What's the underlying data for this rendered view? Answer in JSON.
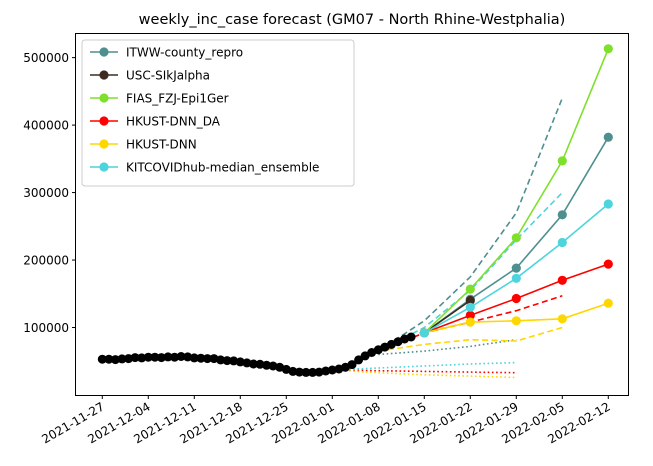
{
  "chart_data": {
    "type": "line",
    "title": "weekly_inc_case forecast (GM07 - North Rhine-Westphalia)",
    "xlabel": "",
    "ylabel": "",
    "xlim": [
      "2021-11-23",
      "2022-02-15"
    ],
    "ylim": [
      0,
      535000
    ],
    "x_ticks": [
      "2021-11-27",
      "2021-12-04",
      "2021-12-11",
      "2021-12-18",
      "2021-12-25",
      "2022-01-01",
      "2022-01-08",
      "2022-01-15",
      "2022-01-22",
      "2022-01-29",
      "2022-02-05",
      "2022-02-12"
    ],
    "y_ticks": [
      100000,
      200000,
      300000,
      400000,
      500000
    ],
    "y_tick_labels": [
      "100000",
      "200000",
      "300000",
      "400000",
      "500000"
    ],
    "grid": false,
    "legend_position": "upper-left",
    "observed": {
      "color": "#000000",
      "points": [
        [
          "2021-11-27",
          53000
        ],
        [
          "2021-11-28",
          53000
        ],
        [
          "2021-11-29",
          52500
        ],
        [
          "2021-11-30",
          53500
        ],
        [
          "2021-12-01",
          54000
        ],
        [
          "2021-12-02",
          55500
        ],
        [
          "2021-12-03",
          55000
        ],
        [
          "2021-12-04",
          56000
        ],
        [
          "2021-12-05",
          56000
        ],
        [
          "2021-12-06",
          55500
        ],
        [
          "2021-12-07",
          56500
        ],
        [
          "2021-12-08",
          56000
        ],
        [
          "2021-12-09",
          57000
        ],
        [
          "2021-12-10",
          56500
        ],
        [
          "2021-12-11",
          55000
        ],
        [
          "2021-12-12",
          54500
        ],
        [
          "2021-12-13",
          54000
        ],
        [
          "2021-12-14",
          54000
        ],
        [
          "2021-12-15",
          52000
        ],
        [
          "2021-12-16",
          51000
        ],
        [
          "2021-12-17",
          50500
        ],
        [
          "2021-12-18",
          49000
        ],
        [
          "2021-12-19",
          47500
        ],
        [
          "2021-12-20",
          46000
        ],
        [
          "2021-12-21",
          45500
        ],
        [
          "2021-12-22",
          44000
        ],
        [
          "2021-12-23",
          43000
        ],
        [
          "2021-12-24",
          41000
        ],
        [
          "2021-12-25",
          38000
        ],
        [
          "2021-12-26",
          35000
        ],
        [
          "2021-12-27",
          34000
        ],
        [
          "2021-12-28",
          33500
        ],
        [
          "2021-12-29",
          33500
        ],
        [
          "2021-12-30",
          34000
        ],
        [
          "2021-12-31",
          35500
        ],
        [
          "2022-01-01",
          37000
        ],
        [
          "2022-01-02",
          38500
        ],
        [
          "2022-01-03",
          41000
        ],
        [
          "2022-01-04",
          45000
        ],
        [
          "2022-01-05",
          52000
        ],
        [
          "2022-01-06",
          58000
        ],
        [
          "2022-01-07",
          63000
        ],
        [
          "2022-01-08",
          67000
        ],
        [
          "2022-01-09",
          71000
        ],
        [
          "2022-01-10",
          75000
        ],
        [
          "2022-01-11",
          79000
        ],
        [
          "2022-01-12",
          83000
        ],
        [
          "2022-01-13",
          86000
        ]
      ]
    },
    "series": [
      {
        "name": "ITWW-county_repro",
        "color": "#4f8f8f",
        "points": [
          [
            "2022-01-15",
            92000
          ],
          [
            "2022-01-22",
            142000
          ],
          [
            "2022-01-29",
            188000
          ],
          [
            "2022-02-05",
            267000
          ],
          [
            "2022-02-12",
            382000
          ]
        ],
        "upper": [
          [
            "2022-01-08",
            65000
          ],
          [
            "2022-01-15",
            110000
          ],
          [
            "2022-01-22",
            175000
          ],
          [
            "2022-01-29",
            270000
          ],
          [
            "2022-02-05",
            440000
          ]
        ],
        "lower": [
          [
            "2022-01-08",
            60000
          ],
          [
            "2022-01-15",
            65000
          ],
          [
            "2022-01-22",
            72000
          ],
          [
            "2022-01-29",
            82000
          ]
        ]
      },
      {
        "name": "USC-SIkJalpha",
        "color": "#3d2b1f",
        "points": [
          [
            "2022-01-15",
            92000
          ],
          [
            "2022-01-22",
            140000
          ]
        ],
        "upper": [],
        "lower": []
      },
      {
        "name": "FIAS_FZJ-Epi1Ger",
        "color": "#7fe02b",
        "points": [
          [
            "2022-01-15",
            92000
          ],
          [
            "2022-01-22",
            157000
          ],
          [
            "2022-01-29",
            233000
          ],
          [
            "2022-02-05",
            347000
          ],
          [
            "2022-02-12",
            513000
          ]
        ],
        "upper": [],
        "lower": []
      },
      {
        "name": "HKUST-DNN_DA",
        "color": "#ff0000",
        "points": [
          [
            "2022-01-15",
            92000
          ],
          [
            "2022-01-22",
            118000
          ],
          [
            "2022-01-29",
            143000
          ],
          [
            "2022-02-05",
            170000
          ],
          [
            "2022-02-12",
            194000
          ]
        ],
        "upper": [
          [
            "2022-01-08",
            65000
          ],
          [
            "2022-01-15",
            92000
          ],
          [
            "2022-01-22",
            108000
          ],
          [
            "2022-01-29",
            125000
          ],
          [
            "2022-02-05",
            147000
          ]
        ],
        "lower": [
          [
            "2022-01-01",
            37000
          ],
          [
            "2022-01-08",
            36000
          ],
          [
            "2022-01-15",
            35000
          ],
          [
            "2022-01-22",
            34000
          ],
          [
            "2022-01-29",
            33000
          ]
        ]
      },
      {
        "name": "HKUST-DNN",
        "color": "#ffd700",
        "points": [
          [
            "2022-01-15",
            92000
          ],
          [
            "2022-01-22",
            108000
          ],
          [
            "2022-01-29",
            110000
          ],
          [
            "2022-02-05",
            113000
          ],
          [
            "2022-02-12",
            136000
          ]
        ],
        "upper": [
          [
            "2022-01-08",
            65000
          ],
          [
            "2022-01-15",
            75000
          ],
          [
            "2022-01-22",
            82000
          ],
          [
            "2022-01-29",
            80000
          ],
          [
            "2022-02-05",
            100000
          ]
        ],
        "lower": [
          [
            "2022-01-01",
            37000
          ],
          [
            "2022-01-08",
            33000
          ],
          [
            "2022-01-15",
            30000
          ],
          [
            "2022-01-22",
            28000
          ],
          [
            "2022-01-29",
            26000
          ]
        ]
      },
      {
        "name": "KITCOVIDhub-median_ensemble",
        "color": "#4dd4dc",
        "points": [
          [
            "2022-01-15",
            92000
          ],
          [
            "2022-01-22",
            130000
          ],
          [
            "2022-01-29",
            173000
          ],
          [
            "2022-02-05",
            226000
          ],
          [
            "2022-02-12",
            283000
          ]
        ],
        "upper": [
          [
            "2022-01-08",
            65000
          ],
          [
            "2022-01-15",
            100000
          ],
          [
            "2022-01-22",
            155000
          ],
          [
            "2022-01-29",
            230000
          ],
          [
            "2022-02-05",
            300000
          ]
        ],
        "lower": [
          [
            "2022-01-01",
            37000
          ],
          [
            "2022-01-08",
            40000
          ],
          [
            "2022-01-15",
            43000
          ],
          [
            "2022-01-22",
            46000
          ],
          [
            "2022-01-29",
            48000
          ]
        ]
      }
    ]
  }
}
